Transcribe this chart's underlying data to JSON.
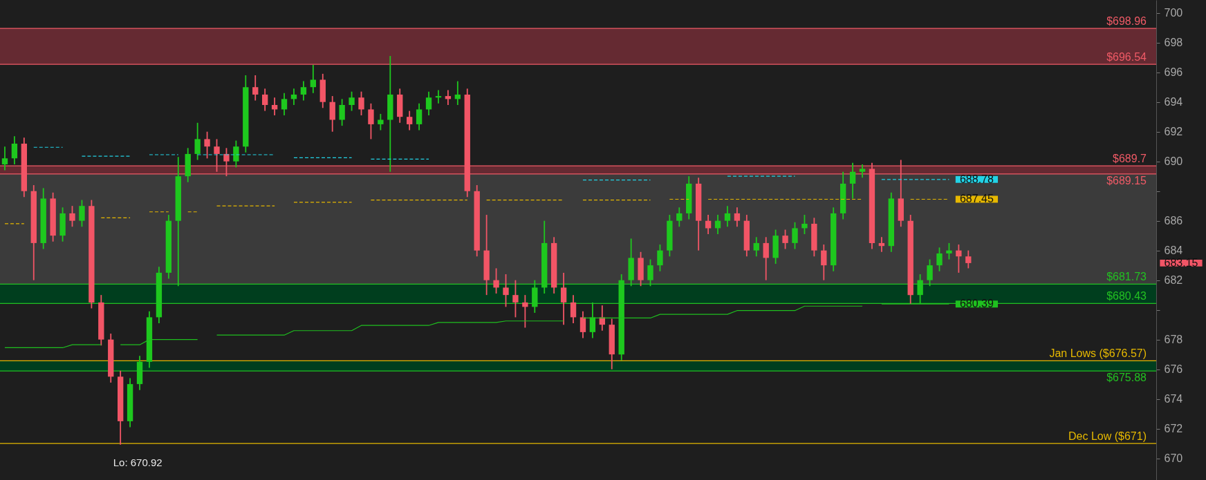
{
  "chart_data": {
    "type": "candlestick",
    "tick_labels": "y",
    "categories": [
      null,
      null,
      null,
      null,
      null,
      null,
      null,
      null,
      null,
      null,
      null,
      null,
      null,
      null,
      null,
      null,
      null,
      null,
      null,
      null,
      null,
      null,
      null,
      null,
      null,
      null,
      null,
      null,
      null,
      null,
      null,
      null,
      null,
      null,
      null,
      null,
      null,
      null,
      null,
      null,
      null,
      null,
      null,
      null,
      null,
      null,
      null,
      null,
      null,
      null,
      null,
      null,
      null,
      null,
      null,
      null,
      null,
      null,
      null,
      null,
      null,
      null,
      null,
      null,
      null,
      null,
      null,
      null,
      null,
      null,
      null,
      null,
      null,
      null,
      null,
      null,
      null,
      null,
      null,
      null,
      null,
      null,
      null,
      null,
      null,
      null,
      null,
      null,
      null,
      null,
      null,
      null,
      null,
      null,
      null,
      null,
      null,
      null,
      null,
      null,
      null,
      null,
      null,
      null,
      null,
      null,
      null,
      null,
      null,
      null,
      null,
      null,
      null,
      null,
      null,
      null,
      null,
      null,
      null,
      null
    ],
    "ohlc": [
      [
        689.8,
        691.0,
        689.4,
        690.2
      ],
      [
        690.2,
        691.7,
        689.8,
        691.2
      ],
      [
        691.2,
        691.6,
        687.6,
        688.0
      ],
      [
        688.0,
        688.4,
        682.0,
        684.5
      ],
      [
        684.5,
        688.2,
        684.1,
        687.5
      ],
      [
        687.5,
        687.9,
        684.6,
        685.0
      ],
      [
        685.0,
        686.9,
        684.6,
        686.5
      ],
      [
        686.5,
        687.0,
        685.6,
        686.0
      ],
      [
        686.0,
        687.4,
        685.6,
        687.0
      ],
      [
        687.0,
        687.4,
        680.1,
        680.5
      ],
      [
        680.5,
        681.0,
        677.6,
        678.0
      ],
      [
        678.0,
        678.4,
        675.1,
        675.5
      ],
      [
        675.5,
        675.9,
        670.92,
        672.5
      ],
      [
        672.5,
        675.4,
        672.1,
        675.0
      ],
      [
        675.0,
        676.9,
        674.6,
        676.5
      ],
      [
        676.5,
        679.9,
        676.1,
        679.5
      ],
      [
        679.5,
        682.9,
        679.1,
        682.5
      ],
      [
        682.5,
        686.4,
        682.1,
        686.0
      ],
      [
        686.0,
        690.3,
        681.6,
        689.0
      ],
      [
        689.0,
        690.9,
        688.6,
        690.5
      ],
      [
        690.5,
        692.6,
        690.1,
        691.5
      ],
      [
        691.5,
        692.0,
        690.2,
        691.0
      ],
      [
        691.0,
        691.5,
        689.3,
        690.5
      ],
      [
        690.5,
        690.9,
        689.0,
        690.0
      ],
      [
        690.0,
        691.4,
        689.6,
        691.0
      ],
      [
        691.0,
        695.8,
        690.6,
        695.0
      ],
      [
        695.0,
        695.8,
        694.1,
        694.5
      ],
      [
        694.5,
        694.9,
        693.4,
        693.8
      ],
      [
        693.8,
        694.3,
        693.1,
        693.5
      ],
      [
        693.5,
        694.6,
        693.1,
        694.2
      ],
      [
        694.2,
        694.9,
        693.8,
        694.5
      ],
      [
        694.5,
        695.4,
        694.1,
        695.0
      ],
      [
        695.0,
        696.5,
        694.6,
        695.5
      ],
      [
        695.5,
        695.9,
        693.6,
        694.0
      ],
      [
        694.0,
        694.4,
        692.0,
        692.8
      ],
      [
        692.8,
        694.2,
        692.4,
        693.8
      ],
      [
        693.8,
        694.7,
        693.4,
        694.3
      ],
      [
        694.3,
        694.7,
        693.1,
        693.5
      ],
      [
        693.5,
        693.9,
        691.5,
        692.5
      ],
      [
        692.5,
        693.2,
        692.1,
        692.8
      ],
      [
        692.8,
        697.1,
        689.3,
        694.5
      ],
      [
        694.5,
        694.9,
        692.6,
        693.0
      ],
      [
        693.0,
        693.4,
        692.1,
        692.5
      ],
      [
        692.5,
        693.9,
        692.1,
        693.5
      ],
      [
        693.5,
        694.7,
        693.1,
        694.3
      ],
      [
        694.3,
        694.8,
        693.9,
        694.4
      ],
      [
        694.4,
        694.8,
        693.8,
        694.2
      ],
      [
        694.2,
        695.4,
        693.8,
        694.5
      ],
      [
        694.5,
        694.9,
        687.6,
        688.0
      ],
      [
        688.0,
        688.4,
        683.6,
        684.0
      ],
      [
        684.0,
        686.4,
        681.0,
        682.0
      ],
      [
        682.0,
        682.8,
        681.1,
        681.5
      ],
      [
        681.5,
        682.4,
        680.2,
        681.0
      ],
      [
        681.0,
        682.0,
        679.5,
        680.5
      ],
      [
        680.5,
        681.0,
        678.8,
        680.2
      ],
      [
        680.2,
        682.0,
        679.8,
        681.5
      ],
      [
        681.5,
        686.0,
        681.1,
        684.5
      ],
      [
        684.5,
        684.9,
        681.1,
        681.5
      ],
      [
        681.5,
        682.5,
        679.0,
        680.5
      ],
      [
        680.5,
        681.0,
        679.1,
        679.5
      ],
      [
        679.5,
        679.9,
        678.1,
        678.5
      ],
      [
        678.5,
        680.5,
        678.1,
        679.5
      ],
      [
        679.5,
        680.3,
        678.6,
        679.0
      ],
      [
        679.0,
        679.4,
        676.0,
        677.0
      ],
      [
        677.0,
        682.4,
        676.6,
        682.0
      ],
      [
        682.0,
        684.8,
        681.6,
        683.5
      ],
      [
        683.5,
        683.9,
        681.6,
        682.0
      ],
      [
        682.0,
        683.4,
        681.6,
        683.0
      ],
      [
        683.0,
        684.4,
        682.6,
        684.0
      ],
      [
        684.0,
        686.4,
        683.6,
        686.0
      ],
      [
        686.0,
        686.9,
        685.6,
        686.5
      ],
      [
        686.5,
        689.0,
        686.1,
        688.5
      ],
      [
        688.5,
        688.9,
        684.0,
        686.0
      ],
      [
        686.0,
        686.4,
        685.1,
        685.5
      ],
      [
        685.5,
        686.4,
        685.1,
        686.0
      ],
      [
        686.0,
        687.0,
        685.6,
        686.5
      ],
      [
        686.5,
        686.9,
        685.6,
        686.0
      ],
      [
        686.0,
        686.4,
        683.6,
        684.0
      ],
      [
        684.0,
        684.9,
        683.6,
        684.5
      ],
      [
        684.5,
        684.9,
        682.0,
        683.5
      ],
      [
        683.5,
        685.4,
        683.1,
        685.0
      ],
      [
        685.0,
        685.4,
        684.1,
        684.5
      ],
      [
        684.5,
        685.9,
        684.1,
        685.5
      ],
      [
        685.5,
        686.4,
        685.1,
        685.8
      ],
      [
        685.8,
        686.2,
        683.6,
        684.0
      ],
      [
        684.0,
        684.4,
        682.0,
        683.0
      ],
      [
        683.0,
        686.9,
        682.6,
        686.5
      ],
      [
        686.5,
        689.3,
        686.1,
        688.5
      ],
      [
        688.5,
        689.9,
        687.5,
        689.3
      ],
      [
        689.3,
        689.8,
        688.9,
        689.5
      ],
      [
        689.5,
        689.9,
        684.1,
        684.5
      ],
      [
        684.5,
        684.9,
        683.9,
        684.3
      ],
      [
        684.3,
        687.9,
        683.9,
        687.5
      ],
      [
        687.5,
        690.1,
        685.6,
        686.0
      ],
      [
        686.0,
        686.4,
        680.4,
        681.0
      ],
      [
        681.0,
        682.4,
        680.4,
        682.0
      ],
      [
        682.0,
        683.4,
        681.6,
        683.0
      ],
      [
        683.0,
        684.2,
        682.6,
        683.8
      ],
      [
        683.8,
        684.5,
        683.4,
        684.0
      ],
      [
        684.0,
        684.4,
        682.5,
        683.6
      ],
      [
        683.6,
        684.0,
        682.8,
        683.15
      ],
      null,
      null,
      null,
      null,
      null,
      null,
      null,
      null,
      null,
      null,
      null,
      null,
      null,
      null,
      null,
      null,
      null,
      null,
      null
    ],
    "colors": [
      "#1ec81e",
      "#1ec81e",
      "#f25566",
      "#f25566",
      "#1ec81e",
      "#f25566",
      "#1ec81e",
      "#f25566",
      "#1ec81e",
      "#f25566",
      "#f25566",
      "#f25566",
      "#f25566",
      "#1ec81e",
      "#1ec81e",
      "#1ec81e",
      "#1ec81e",
      "#1ec81e",
      "#1ec81e",
      "#1ec81e",
      "#1ec81e",
      "#f25566",
      "#f25566",
      "#f25566",
      "#1ec81e",
      "#1ec81e",
      "#f25566",
      "#f25566",
      "#f25566",
      "#1ec81e",
      "#1ec81e",
      "#1ec81e",
      "#1ec81e",
      "#f25566",
      "#f25566",
      "#1ec81e",
      "#1ec81e",
      "#f25566",
      "#f25566",
      "#1ec81e",
      "#1ec81e",
      "#f25566",
      "#f25566",
      "#1ec81e",
      "#1ec81e",
      "#1ec81e",
      "#f25566",
      "#1ec81e",
      "#f25566",
      "#f25566",
      "#f25566",
      "#f25566",
      "#f25566",
      "#f25566",
      "#f25566",
      "#1ec81e",
      "#1ec81e",
      "#f25566",
      "#f25566",
      "#f25566",
      "#f25566",
      "#1ec81e",
      "#f25566",
      "#f25566",
      "#1ec81e",
      "#1ec81e",
      "#f25566",
      "#1ec81e",
      "#1ec81e",
      "#1ec81e",
      "#1ec81e",
      "#1ec81e",
      "#f25566",
      "#f25566",
      "#1ec81e",
      "#1ec81e",
      "#f25566",
      "#f25566",
      "#1ec81e",
      "#f25566",
      "#1ec81e",
      "#f25566",
      "#1ec81e",
      "#1ec81e",
      "#f25566",
      "#f25566",
      "#1ec81e",
      "#1ec81e",
      "#1ec81e",
      "#1ec81e",
      "#f25566",
      "#f25566",
      "#1ec81e",
      "#f25566",
      "#f25566",
      "#1ec81e",
      "#1ec81e",
      "#1ec81e",
      "#1ec81e",
      "#f25566",
      "#f25566",
      null,
      null,
      null,
      null,
      null,
      null,
      null,
      null,
      null,
      null,
      null,
      null,
      null,
      null,
      null,
      null,
      null,
      null,
      null
    ],
    "series": [
      {
        "type": "line",
        "color": "#22d3e6",
        "line_style": "dashed",
        "values": [
          null,
          null,
          null,
          690.95,
          690.95,
          690.95,
          690.95,
          null,
          690.35,
          690.35,
          690.35,
          690.35,
          690.35,
          690.35,
          null,
          690.45,
          690.45,
          690.45,
          690.45,
          null,
          690.45,
          690.45,
          690.45,
          690.45,
          690.45,
          690.45,
          690.45,
          690.45,
          690.45,
          null,
          690.25,
          690.25,
          690.25,
          690.25,
          690.25,
          690.25,
          690.25,
          null,
          690.15,
          690.15,
          690.15,
          690.15,
          690.15,
          690.15,
          690.15,
          null,
          null,
          null,
          null,
          null,
          null,
          null,
          null,
          null,
          null,
          null,
          null,
          null,
          null,
          null,
          688.75,
          688.75,
          688.75,
          688.75,
          688.75,
          688.75,
          688.75,
          688.75,
          null,
          null,
          null,
          null,
          null,
          null,
          null,
          689.0,
          689.0,
          689.0,
          689.0,
          689.0,
          689.0,
          689.0,
          689.0,
          null,
          null,
          null,
          null,
          null,
          null,
          null,
          null,
          688.78,
          688.78,
          688.78,
          688.78,
          688.78,
          688.78,
          688.78,
          688.78,
          null,
          null,
          null,
          null,
          null,
          null,
          null,
          null,
          null,
          null,
          null,
          null,
          null,
          null,
          null,
          null,
          null,
          null,
          null,
          null,
          null
        ],
        "value_labels": [
          null,
          null,
          null,
          null,
          null,
          null,
          null,
          null,
          null,
          null,
          null,
          null,
          null,
          null,
          null,
          null,
          null,
          null,
          null,
          null,
          null,
          null,
          null,
          null,
          null,
          null,
          null,
          null,
          null,
          null,
          null,
          null,
          null,
          null,
          null,
          null,
          null,
          null,
          null,
          null,
          null,
          null,
          null,
          null,
          null,
          null,
          null,
          null,
          null,
          null,
          null,
          null,
          null,
          null,
          null,
          null,
          null,
          null,
          null,
          null,
          null,
          null,
          null,
          null,
          null,
          null,
          null,
          null,
          null,
          null,
          null,
          null,
          null,
          null,
          null,
          null,
          null,
          null,
          null,
          null,
          null,
          null,
          null,
          null,
          null,
          null,
          null,
          null,
          null,
          null,
          null,
          null,
          null,
          null,
          null,
          null,
          null,
          null,
          "688.78",
          null,
          null,
          null,
          null,
          null,
          null,
          null,
          null,
          null,
          null,
          null,
          null,
          null,
          null,
          null,
          null,
          null,
          null,
          null,
          null,
          null
        ]
      },
      {
        "type": "line",
        "color": "#e6b800",
        "line_style": "dashed",
        "values": [
          685.8,
          685.8,
          685.8,
          null,
          null,
          null,
          null,
          null,
          null,
          null,
          686.2,
          686.2,
          686.2,
          686.2,
          null,
          686.6,
          686.6,
          686.6,
          null,
          686.6,
          686.6,
          null,
          687.0,
          687.0,
          687.0,
          687.0,
          687.0,
          687.0,
          687.0,
          null,
          687.25,
          687.25,
          687.25,
          687.25,
          687.25,
          687.25,
          687.25,
          null,
          687.4,
          687.4,
          687.4,
          687.4,
          687.4,
          687.4,
          687.4,
          687.4,
          687.4,
          687.4,
          687.4,
          null,
          687.4,
          687.4,
          687.4,
          687.4,
          687.4,
          687.4,
          687.4,
          687.4,
          687.4,
          null,
          687.4,
          687.4,
          687.4,
          687.4,
          687.4,
          687.4,
          687.4,
          687.4,
          null,
          687.45,
          687.45,
          687.45,
          null,
          687.45,
          687.45,
          687.45,
          687.45,
          687.45,
          687.45,
          687.45,
          687.45,
          687.45,
          687.45,
          687.45,
          687.45,
          687.45,
          687.45,
          687.45,
          687.45,
          687.45,
          null,
          null,
          null,
          null,
          687.45,
          687.45,
          687.45,
          687.45,
          687.45,
          null,
          null,
          null,
          null,
          null,
          null,
          null,
          null,
          null,
          null,
          null,
          null,
          null,
          null,
          null,
          null,
          null,
          null,
          null,
          null,
          null
        ],
        "value_labels": [
          null,
          null,
          null,
          null,
          null,
          null,
          null,
          null,
          null,
          null,
          null,
          null,
          null,
          null,
          null,
          null,
          null,
          null,
          null,
          null,
          null,
          null,
          null,
          null,
          null,
          null,
          null,
          null,
          null,
          null,
          null,
          null,
          null,
          null,
          null,
          null,
          null,
          null,
          null,
          null,
          null,
          null,
          null,
          null,
          null,
          null,
          null,
          null,
          null,
          null,
          null,
          null,
          null,
          null,
          null,
          null,
          null,
          null,
          null,
          null,
          null,
          null,
          null,
          null,
          null,
          null,
          null,
          null,
          null,
          null,
          null,
          null,
          null,
          null,
          null,
          null,
          null,
          null,
          null,
          null,
          null,
          null,
          null,
          null,
          null,
          null,
          null,
          null,
          null,
          null,
          null,
          null,
          null,
          null,
          null,
          null,
          null,
          null,
          "687.45",
          null,
          null,
          null,
          null,
          null,
          null,
          null,
          null,
          null,
          null,
          null,
          null,
          null,
          null,
          null,
          null,
          null,
          null,
          null,
          null,
          null
        ]
      },
      {
        "type": "line",
        "color": "#1fc01f",
        "line_style": "solid",
        "values": [
          677.45,
          677.45,
          677.45,
          677.45,
          677.45,
          677.45,
          677.45,
          677.65,
          677.65,
          677.65,
          677.65,
          null,
          677.65,
          677.65,
          677.65,
          678.0,
          678.0,
          678.0,
          678.0,
          678.0,
          678.0,
          null,
          678.3,
          678.3,
          678.3,
          678.3,
          678.3,
          678.3,
          678.3,
          678.3,
          678.6,
          678.6,
          678.6,
          678.6,
          678.6,
          678.6,
          678.6,
          678.95,
          678.95,
          678.95,
          678.95,
          678.95,
          678.95,
          678.95,
          678.95,
          679.15,
          679.15,
          679.15,
          679.15,
          679.15,
          679.15,
          679.15,
          679.25,
          679.25,
          679.25,
          679.25,
          679.25,
          679.25,
          679.25,
          null,
          679.45,
          679.45,
          679.45,
          679.45,
          679.45,
          679.45,
          679.45,
          679.45,
          679.7,
          679.7,
          679.7,
          679.7,
          679.7,
          679.7,
          679.7,
          679.7,
          679.95,
          679.95,
          679.95,
          679.95,
          679.95,
          679.95,
          679.95,
          680.25,
          680.25,
          680.25,
          680.25,
          680.25,
          680.25,
          680.25,
          null,
          680.39,
          680.39,
          680.39,
          680.39,
          680.39,
          680.39,
          680.39,
          680.39,
          null,
          null,
          null,
          null,
          null,
          null,
          null,
          null,
          null,
          null,
          null,
          null,
          null,
          null,
          null,
          null,
          null,
          null,
          null,
          null,
          null
        ],
        "value_labels": [
          null,
          null,
          null,
          null,
          null,
          null,
          null,
          null,
          null,
          null,
          null,
          null,
          null,
          null,
          null,
          null,
          null,
          null,
          null,
          null,
          null,
          null,
          null,
          null,
          null,
          null,
          null,
          null,
          null,
          null,
          null,
          null,
          null,
          null,
          null,
          null,
          null,
          null,
          null,
          null,
          null,
          null,
          null,
          null,
          null,
          null,
          null,
          null,
          null,
          null,
          null,
          null,
          null,
          null,
          null,
          null,
          null,
          null,
          null,
          null,
          null,
          null,
          null,
          null,
          null,
          null,
          null,
          null,
          null,
          null,
          null,
          null,
          null,
          null,
          null,
          null,
          null,
          null,
          null,
          null,
          null,
          null,
          null,
          null,
          null,
          null,
          null,
          null,
          null,
          null,
          null,
          null,
          null,
          null,
          null,
          null,
          null,
          null,
          "680.39",
          null,
          null,
          null,
          null,
          null,
          null,
          null,
          null,
          null,
          null,
          null,
          null,
          null,
          null,
          null,
          null,
          null,
          null,
          null,
          null,
          null
        ]
      }
    ],
    "ylim": [
      668.54,
      700.87
    ],
    "yticks": [
      670,
      672,
      674,
      676,
      678,
      {
        "value": 680,
        "label": null
      },
      682,
      684,
      686,
      {
        "value": 688,
        "label": null
      },
      690,
      692,
      694,
      696,
      698,
      700
    ],
    "bands": [
      {
        "axis": "y",
        "from": 696.54,
        "to": 698.96,
        "color": "#652a32"
      },
      {
        "axis": "y",
        "from": 689.15,
        "to": 689.7,
        "color": "#652a32"
      },
      {
        "axis": "y",
        "from": 681.73,
        "to": 689.15,
        "color": "#3b3b3b"
      },
      {
        "axis": "y",
        "from": 680.43,
        "to": 681.73,
        "color": "#003e1e"
      },
      {
        "axis": "y",
        "from": 675.88,
        "to": 676.57,
        "color": "#003e1e"
      }
    ],
    "ref_lines": [
      {
        "axis": "y",
        "value": 698.96,
        "label": "$698.96",
        "color": "#f05a66"
      },
      {
        "axis": "y",
        "value": 696.54,
        "label": "$696.54",
        "color": "#f05a66"
      },
      {
        "axis": "y",
        "value": 689.7,
        "label": "$689.7",
        "color": "#f05a66"
      },
      {
        "axis": "y",
        "value": 689.15,
        "label": "$689.15",
        "color": "#f05a66"
      },
      {
        "axis": "y",
        "value": 681.73,
        "label": "$681.73",
        "color": "#22c022"
      },
      {
        "axis": "y",
        "value": 680.43,
        "label": "$680.43",
        "color": "#22c022"
      },
      {
        "axis": "y",
        "value": 676.57,
        "label": "Jan Lows ($676.57)",
        "color": "#e6b800"
      },
      {
        "axis": "y",
        "value": 675.88,
        "label": "$675.88",
        "color": "#22c022"
      },
      {
        "axis": "y",
        "value": 671,
        "label": "Dec Low ($671)",
        "color": "#e6b800"
      }
    ],
    "annotations": [
      {
        "text": "Lo: 670.92",
        "y": 670.92
      },
      "683.15"
    ]
  }
}
